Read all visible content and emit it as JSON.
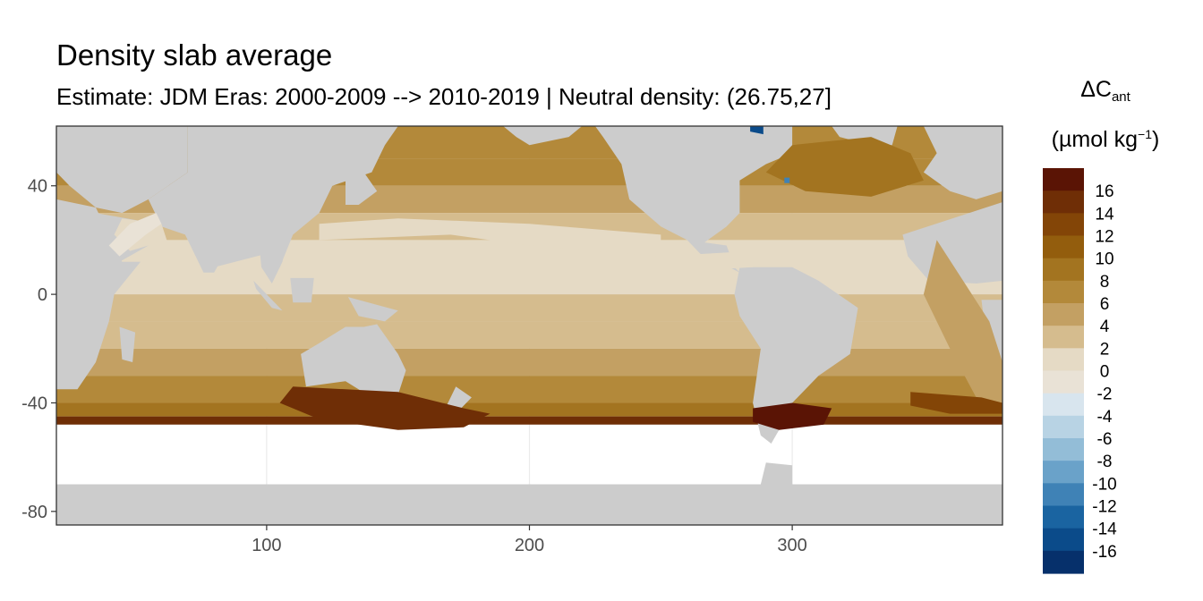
{
  "title": "Density slab average",
  "subtitle": "Estimate: JDM Eras: 2000-2009 --> 2010-2019 | Neutral density: (26.75,27]",
  "legend": {
    "title_main": "ΔC",
    "title_sub": "ant",
    "unit_prefix": "(µmol kg",
    "unit_sup": "−1",
    "unit_suffix": ")",
    "labels": [
      "16",
      "14",
      "12",
      "10",
      "8",
      "6",
      "4",
      "2",
      "0",
      "-2",
      "-4",
      "-6",
      "-8",
      "-10",
      "-12",
      "-14",
      "-16"
    ],
    "colors": [
      "#5a1405",
      "#6f2e06",
      "#834507",
      "#935d0d",
      "#a37420",
      "#b3893a",
      "#c3a063",
      "#d5bc8e",
      "#e5dac5",
      "#e9e2d6",
      "#d8e5ee",
      "#b8d3e4",
      "#93bdd7",
      "#6aa2c9",
      "#3f82b6",
      "#1a64a1",
      "#0b4b8a",
      "#06306b"
    ]
  },
  "chart_data": {
    "type": "heatmap",
    "title": "Density slab average",
    "subtitle": "Estimate: JDM Eras: 2000-2009 --> 2010-2019 | Neutral density: (26.75,27]",
    "xlim": [
      20,
      380
    ],
    "ylim": [
      -85,
      62
    ],
    "x_ticks": [
      100,
      200,
      300
    ],
    "y_ticks": [
      40,
      0,
      -40,
      -80
    ],
    "colors": {
      "land": "#cccccc",
      "no_data": "#ffffff",
      "panel_border": "#333333",
      "grid": "#ebebeb"
    },
    "zonal_profile": [
      {
        "lat": 62,
        "value": 8
      },
      {
        "lat": 50,
        "value": 7
      },
      {
        "lat": 40,
        "value": 5
      },
      {
        "lat": 30,
        "value": 3
      },
      {
        "lat": 20,
        "value": 2
      },
      {
        "lat": 0,
        "value": 3
      },
      {
        "lat": -10,
        "value": 4
      },
      {
        "lat": -20,
        "value": 6
      },
      {
        "lat": -30,
        "value": 8
      },
      {
        "lat": -40,
        "value": 10
      },
      {
        "lat": -45,
        "value": 15
      }
    ]
  }
}
